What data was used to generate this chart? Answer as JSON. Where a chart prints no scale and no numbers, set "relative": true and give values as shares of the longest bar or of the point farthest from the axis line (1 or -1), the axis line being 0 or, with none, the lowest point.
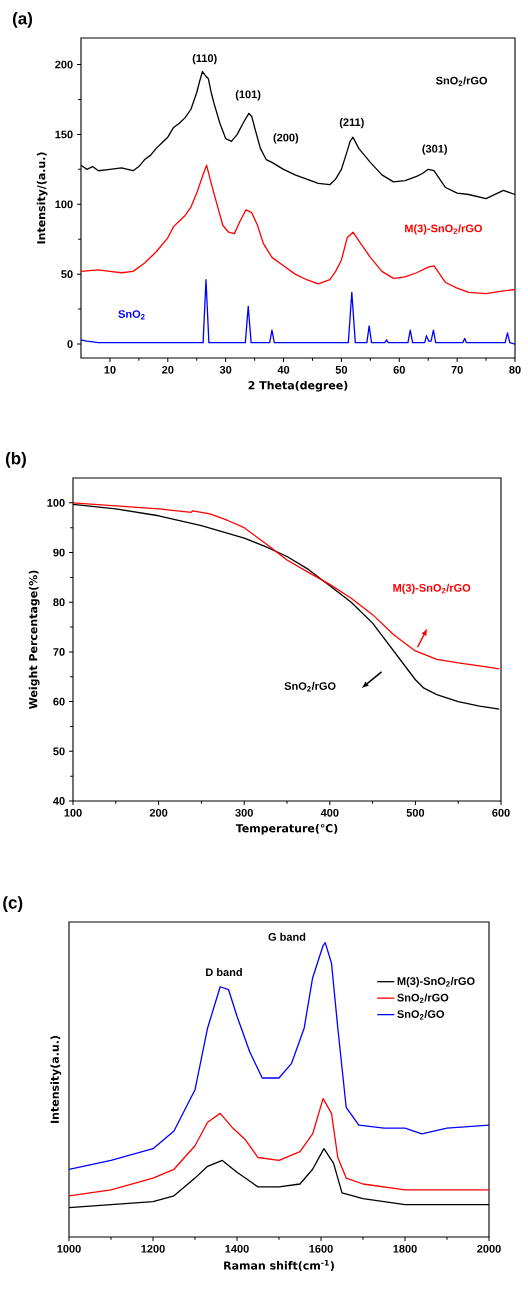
{
  "chart_data": [
    {
      "type": "line",
      "title": "(a)",
      "xlabel": "2 Theta(degree)",
      "ylabel": "Intensity/(a.u.)",
      "xlim": [
        5,
        80
      ],
      "ylim": [
        -10,
        219
      ],
      "xticks": [
        10,
        20,
        30,
        40,
        50,
        60,
        70,
        80
      ],
      "yticks": [
        0,
        50,
        100,
        150,
        200
      ],
      "series": [
        {
          "name": "SnO$_{2}$/rGO",
          "color": "#000000",
          "x": [
            5,
            6,
            7,
            8,
            10,
            12,
            14,
            15,
            16,
            17,
            18,
            19,
            20,
            21,
            22,
            23,
            24,
            25,
            25.5,
            26,
            26.5,
            27,
            27.5,
            28,
            29,
            30,
            31,
            32,
            33,
            34,
            34.5,
            35,
            36,
            37,
            38,
            40,
            42,
            44,
            46,
            48,
            49,
            50,
            51,
            51.5,
            52,
            53,
            54,
            55,
            57,
            59,
            61,
            63,
            64,
            65,
            66,
            67,
            68,
            70,
            72,
            75,
            78,
            80
          ],
          "values": [
            128,
            125,
            127,
            124,
            125,
            126,
            124,
            127,
            132,
            135,
            140,
            144,
            148,
            155,
            158,
            162,
            168,
            180,
            188,
            195,
            192,
            190,
            180,
            172,
            158,
            147,
            145,
            150,
            158,
            165,
            163,
            155,
            140,
            132,
            130,
            125,
            121,
            118,
            115,
            114,
            118,
            125,
            138,
            145,
            148,
            140,
            135,
            130,
            121,
            116,
            117,
            120,
            122,
            125,
            124,
            118,
            112,
            108,
            107,
            104,
            110,
            107
          ]
        },
        {
          "name": "M(3)-SnO$_{2}$/rGO",
          "color": "#ff0000",
          "x": [
            5,
            8,
            10,
            12,
            14,
            16,
            18,
            20,
            21,
            22,
            23,
            24,
            25,
            26,
            26.7,
            27.5,
            28.5,
            29.5,
            30.5,
            31.5,
            32.5,
            33.5,
            34.5,
            35.5,
            36.5,
            38,
            40,
            42,
            44,
            46,
            48,
            49,
            50,
            51,
            52,
            53,
            55,
            57,
            59,
            61,
            63,
            65,
            66,
            67,
            68,
            70,
            72,
            75,
            78,
            80
          ],
          "values": [
            52,
            53,
            52,
            51,
            52,
            58,
            66,
            76,
            84,
            88,
            92,
            98,
            108,
            120,
            128,
            115,
            100,
            85,
            80,
            79,
            88,
            96,
            94,
            85,
            72,
            62,
            56,
            50,
            46,
            43,
            46,
            52,
            60,
            76,
            80,
            74,
            62,
            52,
            47,
            48,
            51,
            55,
            56,
            50,
            44,
            40,
            37,
            36,
            38,
            39
          ]
        },
        {
          "name": "SnO$_{2}$",
          "color": "#0000ff",
          "x": [
            5,
            6,
            8,
            10,
            15,
            20,
            25,
            26.1,
            26.6,
            27.1,
            30,
            33.4,
            33.9,
            34.4,
            37.6,
            38.0,
            38.4,
            45,
            51.2,
            51.8,
            52.4,
            54.4,
            54.8,
            55.2,
            57.5,
            57.8,
            58.1,
            61.5,
            61.9,
            62.3,
            64.4,
            64.7,
            65.1,
            65.5,
            65.9,
            66.3,
            71.0,
            71.3,
            71.6,
            78.3,
            78.7,
            79.1,
            80
          ],
          "values": [
            3,
            2,
            1,
            1,
            1,
            1,
            1,
            1,
            46,
            1,
            1,
            1,
            27,
            1,
            1,
            10,
            1,
            1,
            1,
            37,
            1,
            1,
            13,
            1,
            1,
            3,
            1,
            1,
            10,
            1,
            1,
            6,
            2,
            2,
            10,
            1,
            1,
            4,
            1,
            1,
            8,
            1,
            0
          ]
        }
      ],
      "annotations": [
        "(110)",
        "(101)",
        "(200)",
        "(211)",
        "(301)"
      ]
    },
    {
      "type": "line",
      "title": "(b)",
      "xlabel": "Temperature(℃)",
      "ylabel": "Weight Percentage(%)",
      "xlim": [
        100,
        600
      ],
      "ylim": [
        40,
        105
      ],
      "xticks": [
        100,
        200,
        300,
        400,
        500,
        600
      ],
      "yticks": [
        40,
        50,
        60,
        70,
        80,
        90,
        100
      ],
      "series": [
        {
          "name": "SnO$_{2}$/rGO",
          "color": "#000000",
          "x": [
            100,
            150,
            200,
            250,
            300,
            325,
            350,
            375,
            400,
            425,
            450,
            475,
            500,
            510,
            525,
            550,
            575,
            598
          ],
          "values": [
            99.7,
            98.8,
            97.4,
            95.4,
            92.9,
            91.2,
            89.2,
            86.6,
            83.3,
            80.0,
            75.8,
            70.1,
            64.4,
            62.7,
            61.4,
            60.0,
            59.1,
            58.5
          ]
        },
        {
          "name": "M(3)-SnO$_{2}$/rGO",
          "color": "#ff0000",
          "x": [
            100,
            150,
            200,
            238,
            240,
            260,
            280,
            300,
            325,
            350,
            375,
            400,
            425,
            450,
            475,
            500,
            525,
            550,
            575,
            598
          ],
          "values": [
            100,
            99.4,
            98.8,
            98.1,
            98.4,
            97.8,
            96.5,
            95.0,
            91.8,
            88.5,
            86.0,
            83.6,
            80.8,
            77.5,
            73.4,
            70.2,
            68.5,
            67.8,
            67.2,
            66.6
          ]
        }
      ]
    },
    {
      "type": "line",
      "title": "(c)",
      "xlabel": "Raman shift(cm$^{-1}$)",
      "ylabel": "Intensity(a.u.)",
      "xlim": [
        1000,
        2000
      ],
      "xticks": [
        1000,
        1200,
        1400,
        1600,
        1800,
        2000
      ],
      "relative": true,
      "tick_labels": "x",
      "legend": "top right",
      "series": [
        {
          "name": "M(3)-SnO$_{2}$/rGO",
          "color": "#000000",
          "x": [
            1000,
            1100,
            1200,
            1250,
            1300,
            1330,
            1365,
            1400,
            1450,
            1500,
            1550,
            1580,
            1607,
            1630,
            1650,
            1700,
            1800,
            1900,
            2000
          ],
          "values": [
            0.1,
            0.11,
            0.12,
            0.14,
            0.2,
            0.24,
            0.26,
            0.22,
            0.17,
            0.17,
            0.18,
            0.23,
            0.3,
            0.25,
            0.15,
            0.13,
            0.11,
            0.11,
            0.11
          ]
        },
        {
          "name": "SnO$_{2}$/rGO",
          "color": "#ff0000",
          "x": [
            1000,
            1100,
            1200,
            1250,
            1300,
            1330,
            1360,
            1390,
            1420,
            1450,
            1500,
            1550,
            1580,
            1605,
            1625,
            1640,
            1660,
            1700,
            1800,
            2000
          ],
          "values": [
            0.14,
            0.16,
            0.2,
            0.23,
            0.31,
            0.39,
            0.42,
            0.37,
            0.33,
            0.27,
            0.26,
            0.29,
            0.35,
            0.47,
            0.42,
            0.27,
            0.2,
            0.18,
            0.16,
            0.16
          ]
        },
        {
          "name": "SnO$_{2}$/GO",
          "color": "#0000ff",
          "x": [
            1000,
            1100,
            1200,
            1250,
            1300,
            1330,
            1360,
            1380,
            1400,
            1430,
            1460,
            1500,
            1530,
            1560,
            1580,
            1605,
            1610,
            1625,
            1640,
            1660,
            1690,
            1750,
            1800,
            1840,
            1900,
            2000
          ],
          "values": [
            0.23,
            0.26,
            0.3,
            0.36,
            0.5,
            0.71,
            0.85,
            0.84,
            0.75,
            0.63,
            0.54,
            0.54,
            0.59,
            0.71,
            0.88,
            0.99,
            1,
            0.93,
            0.71,
            0.44,
            0.38,
            0.37,
            0.37,
            0.35,
            0.37,
            0.38
          ]
        }
      ],
      "annotations": [
        "D band",
        "G band"
      ]
    }
  ]
}
